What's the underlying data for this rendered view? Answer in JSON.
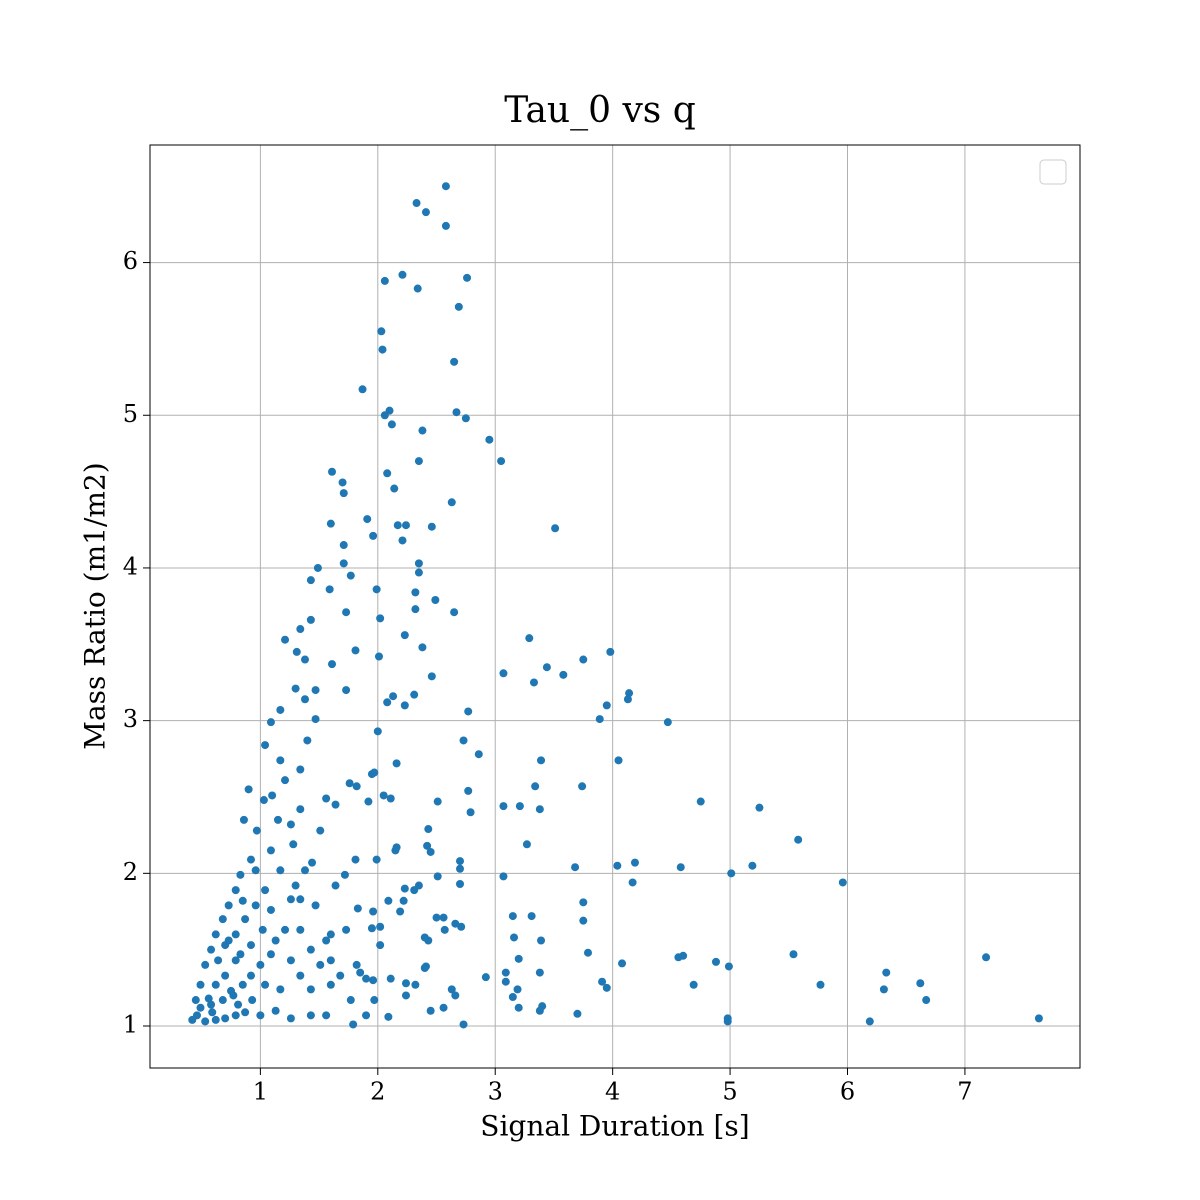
{
  "chart_data": {
    "type": "scatter",
    "title": "Tau_0 vs q",
    "xlabel": "Signal Duration [s]",
    "ylabel": "Mass Ratio (m1/m2)",
    "color": "#1f77b4",
    "grid": true,
    "xlim": [
      0.06,
      7.98
    ],
    "ylim": [
      0.725,
      6.77
    ],
    "xticks": [
      1,
      2,
      3,
      4,
      5,
      6,
      7
    ],
    "yticks": [
      1,
      2,
      3,
      4,
      5,
      6
    ],
    "x": [
      2.58,
      2.33,
      2.41,
      2.58,
      2.21,
      2.06,
      2.76,
      2.34,
      2.69,
      2.03,
      2.04,
      2.65,
      1.87,
      2.1,
      2.06,
      2.67,
      2.75,
      2.12,
      2.38,
      2.95,
      3.05,
      2.35,
      2.08,
      1.61,
      1.7,
      1.71,
      2.14,
      2.63,
      3.51,
      1.91,
      1.6,
      2.17,
      2.24,
      2.46,
      1.96,
      2.21,
      1.71,
      2.35,
      1.71,
      2.35,
      1.77,
      1.49,
      1.43,
      1.99,
      1.59,
      2.32,
      2.49,
      1.73,
      2.65,
      2.32,
      2.02,
      2.23,
      3.29,
      2.38,
      1.81,
      1.31,
      1.61,
      2.01,
      3.44,
      3.98,
      3.75,
      3.07,
      3.58,
      2.46,
      3.33,
      1.73,
      4.14,
      2.13,
      2.31,
      4.13,
      2.08,
      3.95,
      2.23,
      2.77,
      3.89,
      4.47,
      1.09,
      1.95,
      2.73,
      2.86,
      4.05,
      2.16,
      3.39,
      1.76,
      1.82,
      3.74,
      3.34,
      2.77,
      4.75,
      2.51,
      3.21,
      3.07,
      3.38,
      5.25,
      2.79,
      5.58,
      3.27,
      2.43,
      4.19,
      5.19,
      3.68,
      4.04,
      4.58,
      2.7,
      3.07,
      5.01,
      5.96,
      4.17,
      3.75,
      3.15,
      3.31,
      3.75,
      3.16,
      3.39,
      3.79,
      3.2,
      5.54,
      4.6,
      4.56,
      7.18,
      4.08,
      4.88,
      4.99,
      6.33,
      3.38,
      3.09,
      2.92,
      3.09,
      3.91,
      6.62,
      5.77,
      4.69,
      3.95,
      3.19,
      6.31,
      6.67,
      3.15,
      3.4,
      3.2,
      3.38,
      3.7,
      7.63,
      4.98,
      4.98,
      6.19,
      2.73,
      2.71,
      2.66,
      2.7,
      2.7,
      2.51,
      2.43,
      2.4,
      2.42,
      2.45,
      2.57,
      2.35,
      2.31,
      2.23,
      2.22,
      2.09,
      2.19,
      2.15,
      2.16,
      1.99,
      2.05,
      2.11,
      1.92,
      2.0,
      1.97,
      2.4,
      2.41,
      2.24,
      2.24,
      2.11,
      2.09,
      2.45,
      2.56,
      2.32,
      2.63,
      2.66,
      2.5,
      2.56,
      1.83,
      1.96,
      1.95,
      2.02,
      2.02,
      1.82,
      1.85,
      1.9,
      1.96,
      1.97,
      1.9,
      1.79,
      1.77,
      1.68,
      1.6,
      1.73,
      1.6,
      1.56,
      1.81,
      1.72,
      1.64,
      1.47,
      1.34,
      1.3,
      1.38,
      1.44,
      1.51,
      1.64,
      1.56,
      1.34,
      1.26,
      1.28,
      1.34,
      1.4,
      1.47,
      1.38,
      1.3,
      1.21,
      1.34,
      1.43,
      1.38,
      1.47,
      1.17,
      1.17,
      1.21,
      1.1,
      1.04,
      1.15,
      1.09,
      1.03,
      0.97,
      0.92,
      0.86,
      0.9,
      0.83,
      0.79,
      0.73,
      0.68,
      0.62,
      0.58,
      0.53,
      0.49,
      0.45,
      0.42,
      0.46,
      0.53,
      0.62,
      0.7,
      0.79,
      0.87,
      1.0,
      1.13,
      1.26,
      1.43,
      1.56,
      0.58,
      0.68,
      0.77,
      0.85,
      0.92,
      1.0,
      1.09,
      1.13,
      1.21,
      1.26,
      1.34,
      1.43,
      1.17,
      1.04,
      0.93,
      0.79,
      0.7,
      0.62,
      0.7,
      0.79,
      0.87,
      0.96,
      1.04,
      1.09,
      1.02,
      0.92,
      0.83,
      0.75,
      0.81,
      0.59,
      0.49,
      0.56,
      0.64,
      0.73,
      0.85,
      0.96,
      1.17,
      1.26,
      1.34,
      1.43,
      1.51,
      1.6
    ],
    "y": [
      6.5,
      6.39,
      6.33,
      6.24,
      5.92,
      5.88,
      5.9,
      5.83,
      5.71,
      5.55,
      5.43,
      5.35,
      5.17,
      5.03,
      5.0,
      5.02,
      4.98,
      4.94,
      4.9,
      4.84,
      4.7,
      4.7,
      4.62,
      4.63,
      4.56,
      4.49,
      4.52,
      4.43,
      4.26,
      4.32,
      4.29,
      4.28,
      4.28,
      4.27,
      4.21,
      4.18,
      4.15,
      4.03,
      4.03,
      3.97,
      3.95,
      4.0,
      3.92,
      3.86,
      3.86,
      3.84,
      3.79,
      3.71,
      3.71,
      3.73,
      3.67,
      3.56,
      3.54,
      3.48,
      3.46,
      3.45,
      3.37,
      3.42,
      3.35,
      3.45,
      3.4,
      3.31,
      3.3,
      3.29,
      3.25,
      3.2,
      3.18,
      3.16,
      3.17,
      3.14,
      3.12,
      3.1,
      3.1,
      3.06,
      3.01,
      2.99,
      2.99,
      2.65,
      2.87,
      2.78,
      2.74,
      2.72,
      2.74,
      2.59,
      2.57,
      2.57,
      2.57,
      2.54,
      2.47,
      2.47,
      2.44,
      2.44,
      2.42,
      2.43,
      2.4,
      2.22,
      2.19,
      2.29,
      2.07,
      2.05,
      2.04,
      2.05,
      2.04,
      2.08,
      1.98,
      2.0,
      1.94,
      1.94,
      1.81,
      1.72,
      1.72,
      1.69,
      1.58,
      1.56,
      1.48,
      1.44,
      1.47,
      1.46,
      1.45,
      1.45,
      1.41,
      1.42,
      1.39,
      1.35,
      1.35,
      1.35,
      1.32,
      1.29,
      1.29,
      1.28,
      1.27,
      1.27,
      1.25,
      1.24,
      1.24,
      1.17,
      1.19,
      1.13,
      1.12,
      1.1,
      1.08,
      1.05,
      1.05,
      1.03,
      1.03,
      1.01,
      1.65,
      1.67,
      1.93,
      2.03,
      1.98,
      1.56,
      1.58,
      2.18,
      2.14,
      1.63,
      1.92,
      1.89,
      1.9,
      1.82,
      1.82,
      1.75,
      2.15,
      2.17,
      2.09,
      2.51,
      2.49,
      2.47,
      2.93,
      2.66,
      1.38,
      1.39,
      1.2,
      1.28,
      1.31,
      1.06,
      1.1,
      1.12,
      1.27,
      1.24,
      1.2,
      1.71,
      1.71,
      1.77,
      1.75,
      1.64,
      1.65,
      1.53,
      1.4,
      1.35,
      1.31,
      1.3,
      1.17,
      1.07,
      1.01,
      1.17,
      1.33,
      1.27,
      1.63,
      1.6,
      1.56,
      2.09,
      1.99,
      1.92,
      1.79,
      1.83,
      1.92,
      2.02,
      2.07,
      2.28,
      2.45,
      2.49,
      2.42,
      2.32,
      2.19,
      2.68,
      2.87,
      3.01,
      3.14,
      3.21,
      3.53,
      3.6,
      3.66,
      3.4,
      3.2,
      3.07,
      2.74,
      2.61,
      2.51,
      2.84,
      2.35,
      2.15,
      2.48,
      2.28,
      2.09,
      2.35,
      2.55,
      1.99,
      1.89,
      1.79,
      1.7,
      1.6,
      1.5,
      1.4,
      1.27,
      1.17,
      1.04,
      1.07,
      1.03,
      1.04,
      1.05,
      1.07,
      1.09,
      1.07,
      1.1,
      1.05,
      1.07,
      1.07,
      1.14,
      1.17,
      1.2,
      1.27,
      1.33,
      1.4,
      1.47,
      1.56,
      1.63,
      1.43,
      1.33,
      1.24,
      1.24,
      1.27,
      1.17,
      1.43,
      1.33,
      1.27,
      1.53,
      1.6,
      1.7,
      1.79,
      1.89,
      1.76,
      1.63,
      1.53,
      1.47,
      1.23,
      1.14,
      1.09,
      1.12,
      1.18,
      1.43,
      1.56,
      1.82,
      2.02,
      2.02,
      1.83,
      1.63,
      1.5,
      1.4,
      1.43
    ]
  }
}
